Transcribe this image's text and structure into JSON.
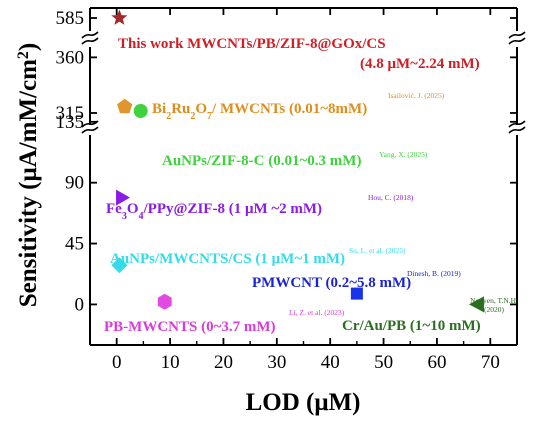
{
  "chart_data": {
    "type": "scatter",
    "xlabel": "LOD (μM)",
    "ylabel_parts": [
      {
        "t": "Sensitivity (μA/mM/cm"
      },
      {
        "t": "2",
        "sup": true
      },
      {
        "t": ")"
      }
    ],
    "xlim": [
      -5,
      75
    ],
    "x_ticks": [
      "0",
      "10",
      "20",
      "30",
      "40",
      "50",
      "60",
      "70"
    ],
    "y_segments": [
      {
        "range": [
          -30,
          160
        ],
        "ticks": [
          "0",
          "45",
          "90",
          "135"
        ]
      },
      {
        "range": [
          298,
          370
        ],
        "ticks": [
          "315",
          "360"
        ]
      },
      {
        "range": [
          570,
          595
        ],
        "ticks": [
          "585"
        ]
      }
    ],
    "grid": false,
    "points": [
      {
        "name": "This work MWCNTs/PB/ZIF-8@GOx/CS",
        "ref": "",
        "x": 0.5,
        "y": 585,
        "marker": "star",
        "color": "#a3282b",
        "label_color": "#d11d24",
        "label_parts": [
          {
            "t": "This work MWCNTs/PB/ZIF-8@GOx/CS"
          }
        ],
        "extra_text": "(4.8 μM~2.24 mM)"
      },
      {
        "name": "Bi2Ru2O7/ MWCNTs",
        "ref": "Isailović, J. (2025)",
        "x": 1.5,
        "y": 320,
        "marker": "pentagon",
        "color": "#e1962d",
        "label_color": "#e08d1c",
        "label_parts": [
          {
            "t": "Bi"
          },
          {
            "t": "2",
            "sub": true
          },
          {
            "t": "Ru"
          },
          {
            "t": "2",
            "sub": true
          },
          {
            "t": "O"
          },
          {
            "t": "7",
            "sub": true
          },
          {
            "t": "/ MWCNTs (0.01~8mM)"
          }
        ]
      },
      {
        "name": "AuNPs/ZIF-8-C",
        "ref": "Yang, X. (2025)",
        "x": 4.5,
        "y": 143,
        "marker": "circle",
        "color": "#3fd13e",
        "label_color": "#3fd13e",
        "label_parts": [
          {
            "t": "AuNPs/ZIF-8-C (0.01~0.3 mM)"
          }
        ]
      },
      {
        "name": "Fe3O4/PPy@ZIF-8",
        "ref": "Hou, C. (2018)",
        "x": 1,
        "y": 79,
        "marker": "triangle-right",
        "color": "#8b1ce5",
        "label_color": "#8b1ce5",
        "label_parts": [
          {
            "t": "Fe"
          },
          {
            "t": "3",
            "sub": true
          },
          {
            "t": "O"
          },
          {
            "t": "4",
            "sub": true
          },
          {
            "t": "/PPy@ZIF-8 (1 μM ~2 mM)"
          }
        ]
      },
      {
        "name": "AuNPs/MWCNTS/CS",
        "ref": "Su, L. et al. (2025)",
        "x": 0.5,
        "y": 29,
        "marker": "diamond",
        "color": "#35dbe8",
        "label_color": "#35dbe8",
        "label_parts": [
          {
            "t": "AuNPs/MWCNTS/CS (1 μM~1 mM)"
          }
        ]
      },
      {
        "name": "PMWCNT",
        "ref": "Dinesh, B. (2019)",
        "x": 45,
        "y": 8,
        "marker": "square",
        "color": "#1a32ec",
        "label_color": "#1a24d6",
        "label_parts": [
          {
            "t": "PMWCNT (0.2~5.8 mM)"
          }
        ]
      },
      {
        "name": "PB-MWCNTS",
        "ref": "Li, Z. et al. (2023)",
        "x": 9,
        "y": 2,
        "marker": "hexagon",
        "color": "#e24be2",
        "label_color": "#d83cd8",
        "label_parts": [
          {
            "t": "PB-MWCNTS (0~3.7 mM)"
          }
        ]
      },
      {
        "name": "Cr/Au/PB",
        "ref_lines": [
          "Nguyen, T.N.H.",
          "(2020)"
        ],
        "x": 67.5,
        "y": 0,
        "marker": "triangle-left",
        "color": "#2a6e20",
        "label_color": "#2a6e20",
        "label_parts": [
          {
            "t": "Cr/Au/PB (1~10 mM)"
          }
        ]
      }
    ]
  }
}
